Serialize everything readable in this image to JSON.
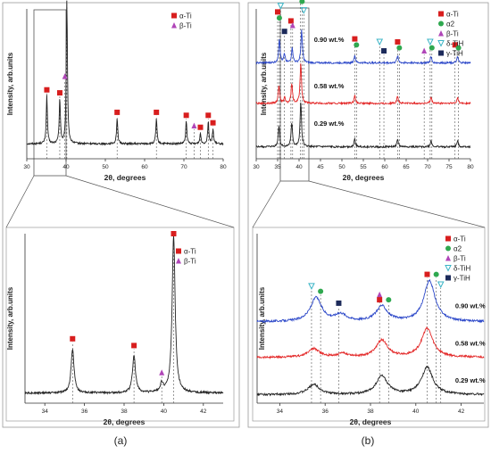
{
  "colors": {
    "black": "#222222",
    "red": "#e32626",
    "blue": "#2a46c8",
    "alpha_ti": "#d81e1e",
    "alpha2": "#2fa84f",
    "beta_ti": "#b046b8",
    "delta_tih": "#3bb4c6",
    "gamma_tih": "#1c2a5a"
  },
  "panel_labels": [
    "(a)",
    "(b)"
  ],
  "chart_data": [
    {
      "id": "a-top",
      "type": "line",
      "xlabel": "2θ, degrees",
      "ylabel": "Intensity, arb.units",
      "xlim": [
        30,
        80
      ],
      "xticks": [
        30,
        40,
        50,
        60,
        70,
        80
      ],
      "legend": [
        "α-Ti",
        "β-Ti"
      ],
      "legend_position": "top-right",
      "series": [
        {
          "color": "#222222",
          "baseline": 0.1,
          "peaks": [
            [
              35.1,
              0.32
            ],
            [
              38.4,
              0.3
            ],
            [
              40.2,
              0.95
            ],
            [
              53.0,
              0.17
            ],
            [
              63.0,
              0.17
            ],
            [
              70.6,
              0.15
            ],
            [
              74.2,
              0.07
            ],
            [
              76.2,
              0.15
            ],
            [
              77.4,
              0.1
            ]
          ]
        }
      ],
      "markers": [
        {
          "x": 35.1,
          "y": 0.46,
          "phase": "α-Ti"
        },
        {
          "x": 38.4,
          "y": 0.44,
          "phase": "α-Ti"
        },
        {
          "x": 39.7,
          "y": 0.55,
          "phase": "β-Ti"
        },
        {
          "x": 40.2,
          "y": 1.08,
          "phase": "α-Ti"
        },
        {
          "x": 53.0,
          "y": 0.31,
          "phase": "α-Ti"
        },
        {
          "x": 63.0,
          "y": 0.31,
          "phase": "α-Ti"
        },
        {
          "x": 70.6,
          "y": 0.29,
          "phase": "α-Ti"
        },
        {
          "x": 72.6,
          "y": 0.22,
          "phase": "β-Ti"
        },
        {
          "x": 74.2,
          "y": 0.21,
          "phase": "α-Ti"
        },
        {
          "x": 76.2,
          "y": 0.29,
          "phase": "α-Ti"
        },
        {
          "x": 77.4,
          "y": 0.24,
          "phase": "α-Ti"
        }
      ]
    },
    {
      "id": "a-zoom",
      "type": "line",
      "xlabel": "2θ, degrees",
      "ylabel": "Intensity, arb.units",
      "xlim": [
        33,
        43
      ],
      "xticks": [
        34,
        36,
        38,
        40,
        42
      ],
      "legend": [
        "α-Ti",
        "β-Ti"
      ],
      "legend_position": "top-right",
      "series": [
        {
          "color": "#222222",
          "baseline": 0.06,
          "peaks": [
            [
              35.4,
              0.26
            ],
            [
              38.5,
              0.22
            ],
            [
              39.9,
              0.05
            ],
            [
              40.5,
              0.93
            ]
          ]
        }
      ],
      "markers": [
        {
          "x": 35.4,
          "y": 0.38,
          "phase": "α-Ti"
        },
        {
          "x": 38.5,
          "y": 0.34,
          "phase": "α-Ti"
        },
        {
          "x": 39.9,
          "y": 0.18,
          "phase": "β-Ti"
        },
        {
          "x": 40.5,
          "y": 1.0,
          "phase": "α-Ti"
        }
      ]
    },
    {
      "id": "b-top",
      "type": "line",
      "xlabel": "2θ, degrees",
      "ylabel": "Intensity, arb.units",
      "xlim": [
        30,
        80
      ],
      "xticks": [
        30,
        35,
        40,
        45,
        50,
        55,
        60,
        65,
        70,
        75,
        80
      ],
      "legend": [
        "α-Ti",
        "α2",
        "β-Ti",
        "δ-TiH",
        "γ-TiH"
      ],
      "legend_position": "top-right",
      "series": [
        {
          "name": "0.29 wt.%",
          "color": "#222222",
          "baseline": 0.08,
          "peaks": [
            [
              35.3,
              0.14
            ],
            [
              38.3,
              0.16
            ],
            [
              40.4,
              0.3
            ],
            [
              53.0,
              0.05
            ],
            [
              63.0,
              0.05
            ],
            [
              70.8,
              0.04
            ],
            [
              77.0,
              0.04
            ]
          ]
        },
        {
          "name": "0.58 wt.%",
          "color": "#e32626",
          "baseline": 0.37,
          "peaks": [
            [
              35.3,
              0.12
            ],
            [
              36.6,
              0.04
            ],
            [
              38.3,
              0.13
            ],
            [
              40.4,
              0.27
            ],
            [
              53.0,
              0.05
            ],
            [
              63.0,
              0.05
            ],
            [
              70.8,
              0.04
            ],
            [
              77.0,
              0.04
            ]
          ]
        },
        {
          "name": "0.90 wt.%",
          "color": "#2a46c8",
          "baseline": 0.64,
          "peaks": [
            [
              35.4,
              0.16
            ],
            [
              36.6,
              0.06
            ],
            [
              38.4,
              0.1
            ],
            [
              40.6,
              0.22
            ],
            [
              53.0,
              0.05
            ],
            [
              63.0,
              0.05
            ],
            [
              70.8,
              0.04
            ],
            [
              77.0,
              0.04
            ]
          ]
        }
      ],
      "markers": [
        {
          "x": 35.0,
          "y": 0.98,
          "phase": "α-Ti"
        },
        {
          "x": 35.4,
          "y": 0.94,
          "phase": "α2"
        },
        {
          "x": 35.7,
          "y": 1.02,
          "phase": "δ-TiH"
        },
        {
          "x": 36.6,
          "y": 0.85,
          "phase": "γ-TiH"
        },
        {
          "x": 38.1,
          "y": 0.92,
          "phase": "α-Ti"
        },
        {
          "x": 38.5,
          "y": 0.89,
          "phase": "β-Ti"
        },
        {
          "x": 40.3,
          "y": 1.12,
          "phase": "α-Ti"
        },
        {
          "x": 40.7,
          "y": 1.05,
          "phase": "α2"
        },
        {
          "x": 41.1,
          "y": 0.99,
          "phase": "δ-TiH"
        },
        {
          "x": 53.0,
          "y": 0.8,
          "phase": "α-Ti"
        },
        {
          "x": 53.4,
          "y": 0.76,
          "phase": "α2"
        },
        {
          "x": 58.8,
          "y": 0.78,
          "phase": "δ-TiH"
        },
        {
          "x": 59.8,
          "y": 0.72,
          "phase": "γ-TiH"
        },
        {
          "x": 63.0,
          "y": 0.78,
          "phase": "α-Ti"
        },
        {
          "x": 63.4,
          "y": 0.74,
          "phase": "α2"
        },
        {
          "x": 69.2,
          "y": 0.72,
          "phase": "β-Ti"
        },
        {
          "x": 70.6,
          "y": 0.78,
          "phase": "δ-TiH"
        },
        {
          "x": 71.0,
          "y": 0.74,
          "phase": "α2"
        },
        {
          "x": 76.4,
          "y": 0.76,
          "phase": "α-Ti"
        },
        {
          "x": 77.2,
          "y": 0.74,
          "phase": "α2"
        }
      ],
      "annotations": [
        {
          "text": "0.90 wt.%",
          "x": 47,
          "y": 0.78
        },
        {
          "text": "0.58 wt.%",
          "x": 47,
          "y": 0.47
        },
        {
          "text": "0.29 wt.%",
          "x": 47,
          "y": 0.22
        }
      ]
    },
    {
      "id": "b-zoom",
      "type": "line",
      "xlabel": "2θ, degrees",
      "ylabel": "Intensity, arb.units",
      "xlim": [
        33,
        43
      ],
      "xticks": [
        34,
        36,
        38,
        40,
        42
      ],
      "legend": [
        "α-Ti",
        "α2",
        "β-Ti",
        "δ-TiH",
        "γ-TiH"
      ],
      "legend_position": "top-right",
      "series": [
        {
          "name": "0.29 wt.%",
          "color": "#222222",
          "baseline": 0.05,
          "peaks": [
            [
              35.5,
              0.06
            ],
            [
              38.5,
              0.11
            ],
            [
              40.5,
              0.16
            ]
          ]
        },
        {
          "name": "0.58 wt.%",
          "color": "#e32626",
          "baseline": 0.27,
          "peaks": [
            [
              35.5,
              0.05
            ],
            [
              36.8,
              0.02
            ],
            [
              38.5,
              0.1
            ],
            [
              40.5,
              0.17
            ]
          ]
        },
        {
          "name": "0.90 wt.%",
          "color": "#2a46c8",
          "baseline": 0.48,
          "peaks": [
            [
              35.6,
              0.14
            ],
            [
              36.7,
              0.04
            ],
            [
              38.5,
              0.09
            ],
            [
              40.6,
              0.24
            ]
          ]
        }
      ],
      "markers": [
        {
          "x": 35.4,
          "y": 0.69,
          "phase": "δ-TiH"
        },
        {
          "x": 35.8,
          "y": 0.66,
          "phase": "α2"
        },
        {
          "x": 36.6,
          "y": 0.59,
          "phase": "γ-TiH"
        },
        {
          "x": 38.4,
          "y": 0.64,
          "phase": "β-Ti"
        },
        {
          "x": 38.4,
          "y": 0.61,
          "phase": "α-Ti"
        },
        {
          "x": 38.8,
          "y": 0.61,
          "phase": "α2"
        },
        {
          "x": 40.5,
          "y": 0.76,
          "phase": "α-Ti"
        },
        {
          "x": 40.9,
          "y": 0.76,
          "phase": "α2"
        },
        {
          "x": 41.1,
          "y": 0.7,
          "phase": "δ-TiH"
        }
      ],
      "annotations": [
        {
          "text": "0.90 wt.%",
          "x": 42.4,
          "y": 0.56
        },
        {
          "text": "0.58 wt.%",
          "x": 42.4,
          "y": 0.34
        },
        {
          "text": "0.29 wt.%",
          "x": 42.4,
          "y": 0.12
        }
      ]
    }
  ]
}
